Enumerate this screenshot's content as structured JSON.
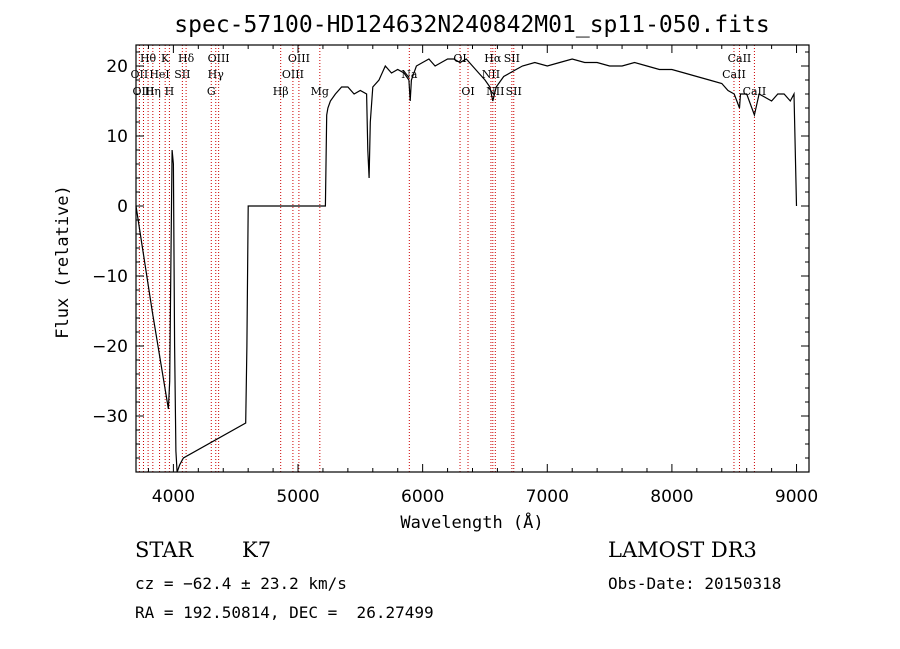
{
  "chart_data": {
    "type": "line",
    "title": "spec-57100-HD124632N240842M01_sp11-050.fits",
    "xlabel": "Wavelength (Å)",
    "ylabel": "Flux (relative)",
    "xlim": [
      3700,
      9100
    ],
    "ylim": [
      -38,
      23
    ],
    "xticks": [
      4000,
      5000,
      6000,
      7000,
      8000,
      9000
    ],
    "xtick_labels": [
      "4000",
      "5000",
      "6000",
      "7000",
      "8000",
      "9000"
    ],
    "yticks": [
      20,
      10,
      0,
      -10,
      -20,
      -30
    ],
    "ytick_labels": [
      "20",
      "10",
      "0",
      "−10",
      "−20",
      "−30"
    ],
    "spectrum": {
      "name": "flux",
      "x": [
        3700,
        3830,
        3960,
        3970,
        3980,
        3990,
        4000,
        4010,
        4020,
        4030,
        4040,
        4050,
        4080,
        4580,
        4590,
        4600,
        5220,
        5230,
        5240,
        5260,
        5300,
        5350,
        5400,
        5450,
        5500,
        5550,
        5560,
        5570,
        5580,
        5600,
        5650,
        5700,
        5750,
        5800,
        5850,
        5890,
        5900,
        5910,
        5950,
        6000,
        6050,
        6100,
        6150,
        6200,
        6250,
        6300,
        6350,
        6400,
        6450,
        6500,
        6540,
        6563,
        6590,
        6650,
        6700,
        6750,
        6800,
        6900,
        7000,
        7100,
        7200,
        7300,
        7400,
        7500,
        7600,
        7700,
        7800,
        7900,
        8000,
        8100,
        8200,
        8300,
        8400,
        8450,
        8500,
        8542,
        8550,
        8600,
        8662,
        8700,
        8800,
        8850,
        8900,
        8950,
        8980,
        9000
      ],
      "y": [
        0,
        -15,
        -29,
        -25,
        -8,
        8,
        6,
        -20,
        -35,
        -38,
        -37.5,
        -37,
        -36,
        -31,
        -20,
        0,
        0,
        13,
        14,
        15,
        16,
        17,
        17,
        16,
        16.5,
        16,
        8,
        4,
        12,
        17,
        18,
        20,
        19,
        19.5,
        19,
        18,
        15,
        18,
        20,
        20.5,
        21,
        20,
        20.5,
        21,
        21,
        20.5,
        21,
        20,
        19,
        18,
        17,
        15,
        17,
        18.5,
        19,
        19.5,
        20,
        20.5,
        20,
        20.5,
        21,
        20.5,
        20.5,
        20,
        20,
        20.5,
        20,
        19.5,
        19.5,
        19,
        18.5,
        18,
        17.5,
        16.5,
        16,
        14,
        16,
        16,
        13,
        16,
        15,
        16,
        16,
        15,
        16,
        0
      ]
    },
    "line_markers": [
      {
        "label": "Hθ",
        "x": 3797,
        "row": 0
      },
      {
        "label": "OII",
        "x": 3727,
        "row": 1
      },
      {
        "label": "OIII",
        "x": 3760,
        "row": 2
      },
      {
        "label": "Hη",
        "x": 3835,
        "row": 2
      },
      {
        "label": "K",
        "x": 3934,
        "row": 0
      },
      {
        "label": "HeI",
        "x": 3889,
        "row": 1
      },
      {
        "label": "H",
        "x": 3968,
        "row": 2
      },
      {
        "label": "Hδ",
        "x": 4102,
        "row": 0
      },
      {
        "label": "SII",
        "x": 4072,
        "row": 1
      },
      {
        "label": "OIII",
        "x": 4363,
        "row": 0
      },
      {
        "label": "Hγ",
        "x": 4340,
        "row": 1
      },
      {
        "label": "G",
        "x": 4304,
        "row": 2
      },
      {
        "label": "Hβ",
        "x": 4861,
        "row": 2
      },
      {
        "label": "OIII",
        "x": 5007,
        "row": 0
      },
      {
        "label": "OIII",
        "x": 4959,
        "row": 1
      },
      {
        "label": "Mg",
        "x": 5175,
        "row": 2
      },
      {
        "label": "Na",
        "x": 5893,
        "row": 1
      },
      {
        "label": "OI",
        "x": 6300,
        "row": 0
      },
      {
        "label": "OI",
        "x": 6364,
        "row": 2
      },
      {
        "label": "NII",
        "x": 6548,
        "row": 1
      },
      {
        "label": "Hα",
        "x": 6563,
        "row": 0
      },
      {
        "label": "NII",
        "x": 6583,
        "row": 2
      },
      {
        "label": "SII",
        "x": 6716,
        "row": 0
      },
      {
        "label": "SII",
        "x": 6731,
        "row": 2
      },
      {
        "label": "CaII",
        "x": 8498,
        "row": 1
      },
      {
        "label": "CaII",
        "x": 8542,
        "row": 0
      },
      {
        "label": "CaII",
        "x": 8662,
        "row": 2
      }
    ]
  },
  "info": {
    "object_class": "STAR",
    "subclass": "K7",
    "survey": "LAMOST DR3",
    "velocity": "cz = −62.4 ± 23.2 km/s",
    "obs_date": "Obs-Date: 20150318",
    "coords": "RA = 192.50814, DEC =  26.27499"
  },
  "colors": {
    "spectrum": "#000000",
    "marker_lines": "#cc0000",
    "axes": "#000000",
    "background": "#ffffff"
  }
}
